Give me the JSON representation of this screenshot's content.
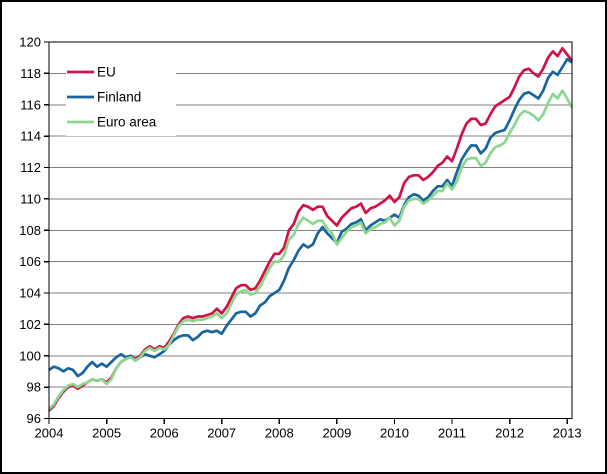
{
  "chart_data": {
    "type": "line",
    "title": "",
    "x_axis": {
      "tick_labels": [
        "2004",
        "2005",
        "2006",
        "2007",
        "2008",
        "2009",
        "2010",
        "2011",
        "2012",
        "2013"
      ],
      "unit": "month",
      "start": "2004-01",
      "end": "2013-02"
    },
    "y_axis": {
      "min": 96,
      "max": 120,
      "tick_step": 2,
      "tick_labels": [
        "96",
        "98",
        "100",
        "102",
        "104",
        "106",
        "108",
        "110",
        "112",
        "114",
        "116",
        "118",
        "120"
      ]
    },
    "grid": true,
    "legend_position": "top-left",
    "series": [
      {
        "name": "EU",
        "color": "#d01347",
        "values": [
          96.5,
          96.8,
          97.3,
          97.7,
          98.0,
          98.1,
          97.9,
          98.1,
          98.3,
          98.5,
          98.4,
          98.5,
          98.3,
          98.6,
          99.2,
          99.6,
          99.8,
          100.0,
          99.8,
          100.0,
          100.4,
          100.6,
          100.4,
          100.6,
          100.5,
          100.9,
          101.4,
          102.0,
          102.4,
          102.5,
          102.4,
          102.5,
          102.5,
          102.6,
          102.7,
          103.0,
          102.7,
          103.1,
          103.7,
          104.3,
          104.5,
          104.5,
          104.2,
          104.3,
          104.8,
          105.4,
          106.0,
          106.5,
          106.5,
          106.9,
          108.0,
          108.4,
          109.2,
          109.6,
          109.5,
          109.3,
          109.5,
          109.5,
          108.9,
          108.6,
          108.3,
          108.8,
          109.1,
          109.4,
          109.5,
          109.7,
          109.1,
          109.4,
          109.5,
          109.7,
          109.9,
          110.2,
          109.8,
          110.1,
          111.0,
          111.4,
          111.5,
          111.5,
          111.2,
          111.4,
          111.7,
          112.1,
          112.3,
          112.7,
          112.4,
          113.2,
          114.1,
          114.8,
          115.1,
          115.1,
          114.7,
          114.8,
          115.4,
          115.9,
          116.1,
          116.3,
          116.5,
          117.1,
          117.8,
          118.2,
          118.3,
          118.0,
          117.8,
          118.3,
          119.0,
          119.4,
          119.1,
          119.6,
          119.2,
          118.8
        ]
      },
      {
        "name": "Finland",
        "color": "#17649f",
        "values": [
          99.1,
          99.3,
          99.2,
          99.0,
          99.2,
          99.1,
          98.7,
          98.9,
          99.3,
          99.6,
          99.3,
          99.5,
          99.3,
          99.6,
          99.9,
          100.1,
          99.9,
          100.0,
          99.7,
          99.9,
          100.1,
          100.0,
          99.9,
          100.1,
          100.3,
          100.7,
          101.0,
          101.2,
          101.3,
          101.3,
          101.0,
          101.2,
          101.5,
          101.6,
          101.5,
          101.6,
          101.4,
          101.9,
          102.3,
          102.7,
          102.8,
          102.8,
          102.5,
          102.7,
          103.2,
          103.4,
          103.8,
          104.0,
          104.2,
          104.8,
          105.6,
          106.1,
          106.7,
          107.1,
          106.9,
          107.1,
          107.8,
          108.2,
          107.8,
          107.5,
          107.2,
          107.9,
          108.1,
          108.4,
          108.5,
          108.7,
          108.0,
          108.3,
          108.5,
          108.7,
          108.6,
          108.8,
          109.0,
          108.8,
          109.6,
          110.1,
          110.3,
          110.2,
          109.9,
          110.1,
          110.5,
          110.8,
          110.8,
          111.2,
          110.8,
          111.7,
          112.5,
          113.0,
          113.4,
          113.4,
          112.9,
          113.2,
          113.9,
          114.2,
          114.3,
          114.4,
          115.0,
          115.7,
          116.3,
          116.7,
          116.8,
          116.6,
          116.4,
          116.9,
          117.7,
          118.1,
          117.9,
          118.4,
          118.9,
          118.7
        ]
      },
      {
        "name": "Euro area",
        "color": "#8bd78e",
        "values": [
          96.6,
          96.9,
          97.4,
          97.8,
          98.1,
          98.2,
          98.0,
          98.2,
          98.3,
          98.5,
          98.4,
          98.5,
          98.2,
          98.5,
          99.2,
          99.6,
          99.8,
          99.9,
          99.7,
          99.9,
          100.3,
          100.5,
          100.3,
          100.5,
          100.4,
          100.7,
          101.3,
          101.9,
          102.2,
          102.3,
          102.2,
          102.3,
          102.3,
          102.4,
          102.5,
          102.7,
          102.4,
          102.7,
          103.3,
          103.9,
          104.1,
          104.2,
          103.9,
          104.0,
          104.4,
          105.0,
          105.6,
          106.0,
          106.0,
          106.4,
          107.4,
          107.7,
          108.4,
          108.8,
          108.6,
          108.4,
          108.6,
          108.6,
          108.1,
          107.8,
          107.1,
          107.5,
          107.9,
          108.2,
          108.3,
          108.5,
          107.8,
          108.1,
          108.2,
          108.4,
          108.5,
          108.8,
          108.3,
          108.6,
          109.5,
          109.9,
          110.0,
          110.0,
          109.7,
          109.9,
          110.2,
          110.5,
          110.5,
          111.0,
          110.6,
          111.1,
          112.0,
          112.5,
          112.6,
          112.6,
          112.1,
          112.3,
          112.9,
          113.3,
          113.4,
          113.6,
          114.2,
          114.7,
          115.3,
          115.6,
          115.5,
          115.3,
          115.0,
          115.4,
          116.1,
          116.7,
          116.4,
          116.9,
          116.4,
          115.8
        ]
      }
    ]
  },
  "colors": {
    "grid": "#808080",
    "axis": "#000000",
    "background": "#ffffff"
  }
}
